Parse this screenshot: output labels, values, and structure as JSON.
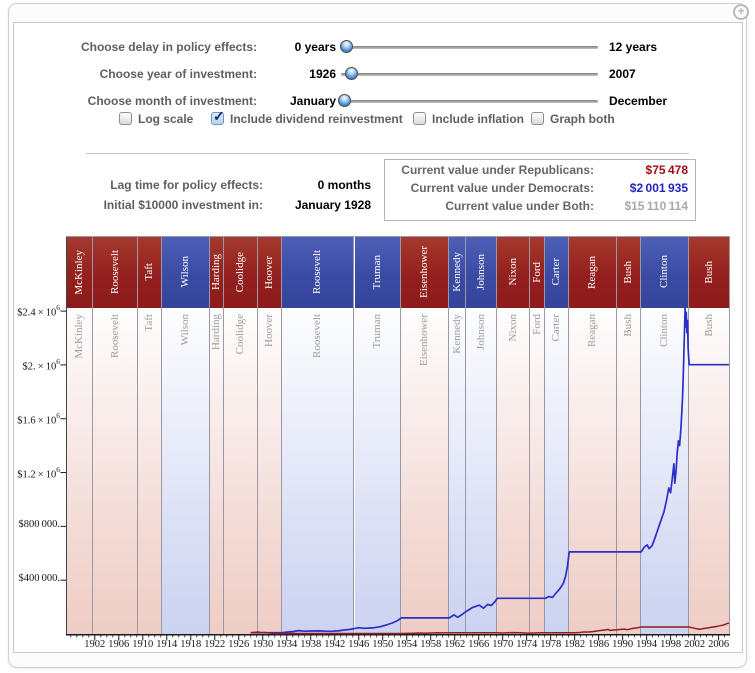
{
  "icons": {
    "plus": "+",
    "check": "✓"
  },
  "controls": {
    "sliders": [
      {
        "label": "Choose delay in policy effects:",
        "min": "0 years",
        "max": "12 years",
        "thumb_pct": 2
      },
      {
        "label": "Choose year of investment:",
        "min": "1926",
        "max": "2007",
        "thumb_pct": 4
      },
      {
        "label": "Choose month of investment:",
        "min": "January",
        "max": "December",
        "thumb_pct": 1
      }
    ],
    "checkboxes": [
      {
        "label": "Log scale",
        "checked": false
      },
      {
        "label": "Include dividend reinvestment",
        "checked": true
      },
      {
        "label": "Include inflation",
        "checked": false
      },
      {
        "label": "Graph both",
        "checked": false
      }
    ]
  },
  "info": {
    "rows": [
      {
        "label": "Lag time for policy effects:",
        "value": "0 months"
      },
      {
        "label": "Initial $10000 investment in:",
        "value": "January 1928"
      }
    ],
    "current_values": [
      {
        "label": "Current value under Republicans:",
        "value": "$75 478",
        "color": "#a30d12"
      },
      {
        "label": "Current value under Democrats:",
        "value": "$2 001 935",
        "color": "#2323c8"
      },
      {
        "label": "Current value under Both:",
        "value": "$15 110 114",
        "color": "#a9a9a9"
      }
    ]
  },
  "chart_data": {
    "type": "line",
    "x_domain": [
      1897.2,
      2007.9
    ],
    "y_domain": [
      0,
      2423000
    ],
    "party_colors": {
      "R": "#8c1b1a",
      "D": "#35439a"
    },
    "presidents": [
      {
        "name": "McKinley",
        "party": "R",
        "start": 1897.2
      },
      {
        "name": "Roosevelt",
        "party": "R",
        "start": 1901.7
      },
      {
        "name": "Taft",
        "party": "R",
        "start": 1909.2
      },
      {
        "name": "Wilson",
        "party": "D",
        "start": 1913.2
      },
      {
        "name": "Harding",
        "party": "R",
        "start": 1921.2
      },
      {
        "name": "Coolidge",
        "party": "R",
        "start": 1923.6
      },
      {
        "name": "Hoover",
        "party": "R",
        "start": 1929.2
      },
      {
        "name": "Roosevelt",
        "party": "D",
        "start": 1933.2
      },
      {
        "name": "Truman",
        "party": "D",
        "start": 1945.3
      },
      {
        "name": "Eisenhower",
        "party": "R",
        "start": 1953.1
      },
      {
        "name": "Kennedy",
        "party": "D",
        "start": 1961.1
      },
      {
        "name": "Johnson",
        "party": "D",
        "start": 1963.9
      },
      {
        "name": "Nixon",
        "party": "R",
        "start": 1969.1
      },
      {
        "name": "Ford",
        "party": "R",
        "start": 1974.6
      },
      {
        "name": "Carter",
        "party": "D",
        "start": 1977.1
      },
      {
        "name": "Reagan",
        "party": "R",
        "start": 1981.1
      },
      {
        "name": "Bush",
        "party": "R",
        "start": 1989.1
      },
      {
        "name": "Clinton",
        "party": "D",
        "start": 1993.1
      },
      {
        "name": "Bush",
        "party": "R",
        "start": 2001.1
      }
    ],
    "x_ticks": [
      1902,
      1906,
      1910,
      1914,
      1918,
      1922,
      1926,
      1930,
      1934,
      1938,
      1942,
      1946,
      1950,
      1954,
      1958,
      1962,
      1966,
      1970,
      1974,
      1978,
      1982,
      1986,
      1990,
      1994,
      1998,
      2002,
      2006
    ],
    "y_ticks": [
      {
        "value": 2400000,
        "base": "$2.4 × 10",
        "exp": "6"
      },
      {
        "value": 2000000,
        "base": "$2. × 10",
        "exp": "6"
      },
      {
        "value": 1600000,
        "base": "$1.6 × 10",
        "exp": "6"
      },
      {
        "value": 1200000,
        "base": "$1.2 × 10",
        "exp": "6"
      },
      {
        "value": 800000,
        "base": "$800 000.",
        "exp": ""
      },
      {
        "value": 400000,
        "base": "$400 000.",
        "exp": ""
      }
    ],
    "series": [
      {
        "name": "Democrats only",
        "color": "#2b2fc8",
        "width": 1.7,
        "points": [
          [
            1928.0,
            10000
          ],
          [
            1933.2,
            10000
          ],
          [
            1934.0,
            14000
          ],
          [
            1935.0,
            18000
          ],
          [
            1936.0,
            25000
          ],
          [
            1937.0,
            21000
          ],
          [
            1938.0,
            22000
          ],
          [
            1939.5,
            23000
          ],
          [
            1940.5,
            21000
          ],
          [
            1941.5,
            20000
          ],
          [
            1942.5,
            23000
          ],
          [
            1943.5,
            29000
          ],
          [
            1944.5,
            34000
          ],
          [
            1945.3,
            40000
          ],
          [
            1946.0,
            47000
          ],
          [
            1946.8,
            42000
          ],
          [
            1947.6,
            44000
          ],
          [
            1948.6,
            47000
          ],
          [
            1949.6,
            54000
          ],
          [
            1950.6,
            67000
          ],
          [
            1951.6,
            82000
          ],
          [
            1952.5,
            100000
          ],
          [
            1953.1,
            120000
          ],
          [
            1961.1,
            120000
          ],
          [
            1961.9,
            142000
          ],
          [
            1962.5,
            124000
          ],
          [
            1963.2,
            144000
          ],
          [
            1964.0,
            170000
          ],
          [
            1965.0,
            198000
          ],
          [
            1966.1,
            214000
          ],
          [
            1966.8,
            192000
          ],
          [
            1967.5,
            220000
          ],
          [
            1968.1,
            212000
          ],
          [
            1968.7,
            240000
          ],
          [
            1969.1,
            265000
          ],
          [
            1977.1,
            265000
          ],
          [
            1977.7,
            278000
          ],
          [
            1978.3,
            272000
          ],
          [
            1978.9,
            305000
          ],
          [
            1979.5,
            335000
          ],
          [
            1980.1,
            375000
          ],
          [
            1980.5,
            430000
          ],
          [
            1980.8,
            500000
          ],
          [
            1981.1,
            610000
          ],
          [
            1993.1,
            610000
          ],
          [
            1993.6,
            645000
          ],
          [
            1994.1,
            662000
          ],
          [
            1994.4,
            635000
          ],
          [
            1994.9,
            655000
          ],
          [
            1995.4,
            715000
          ],
          [
            1995.9,
            780000
          ],
          [
            1996.4,
            845000
          ],
          [
            1996.9,
            910000
          ],
          [
            1997.3,
            990000
          ],
          [
            1997.7,
            1085000
          ],
          [
            1998.0,
            1050000
          ],
          [
            1998.3,
            1165000
          ],
          [
            1998.55,
            1265000
          ],
          [
            1998.7,
            1120000
          ],
          [
            1998.9,
            1205000
          ],
          [
            1999.1,
            1345000
          ],
          [
            1999.3,
            1435000
          ],
          [
            1999.5,
            1400000
          ],
          [
            1999.7,
            1515000
          ],
          [
            1999.85,
            1635000
          ],
          [
            2000.0,
            1765000
          ],
          [
            2000.1,
            1905000
          ],
          [
            2000.2,
            2065000
          ],
          [
            2000.3,
            2225000
          ],
          [
            2000.42,
            2420000
          ],
          [
            2000.52,
            2280000
          ],
          [
            2000.62,
            2390000
          ],
          [
            2000.72,
            2240000
          ],
          [
            2000.82,
            2330000
          ],
          [
            2000.92,
            2130000
          ],
          [
            2001.0,
            2060000
          ],
          [
            2001.1,
            2001935
          ],
          [
            2007.9,
            2001935
          ]
        ]
      },
      {
        "name": "Republicans only",
        "color": "#8e1f1f",
        "width": 1.5,
        "points": [
          [
            1928.0,
            10000
          ],
          [
            1928.6,
            12000
          ],
          [
            1929.2,
            14500
          ],
          [
            1929.8,
            10500
          ],
          [
            1930.3,
            11500
          ],
          [
            1931.0,
            7500
          ],
          [
            1932.0,
            4000
          ],
          [
            1932.6,
            3000
          ],
          [
            1933.2,
            3600
          ],
          [
            1953.1,
            3600
          ],
          [
            1954.0,
            4500
          ],
          [
            1955.0,
            6000
          ],
          [
            1956.0,
            7200
          ],
          [
            1957.0,
            6300
          ],
          [
            1958.0,
            7600
          ],
          [
            1959.0,
            8800
          ],
          [
            1960.0,
            8300
          ],
          [
            1961.1,
            8900
          ],
          [
            1969.1,
            8900
          ],
          [
            1970.0,
            7700
          ],
          [
            1971.0,
            9000
          ],
          [
            1972.0,
            10400
          ],
          [
            1973.0,
            9500
          ],
          [
            1974.0,
            7000
          ],
          [
            1974.8,
            6500
          ],
          [
            1975.6,
            8200
          ],
          [
            1976.6,
            9600
          ],
          [
            1977.1,
            9900
          ],
          [
            1981.1,
            9900
          ],
          [
            1982.0,
            9200
          ],
          [
            1982.8,
            11500
          ],
          [
            1983.5,
            14500
          ],
          [
            1984.3,
            15200
          ],
          [
            1985.0,
            18000
          ],
          [
            1986.0,
            23500
          ],
          [
            1987.0,
            30000
          ],
          [
            1987.6,
            34500
          ],
          [
            1987.85,
            26500
          ],
          [
            1988.5,
            29500
          ],
          [
            1989.1,
            31500
          ],
          [
            1989.7,
            34500
          ],
          [
            1990.3,
            36500
          ],
          [
            1990.8,
            32000
          ],
          [
            1991.4,
            39000
          ],
          [
            1992.1,
            44000
          ],
          [
            1992.7,
            48000
          ],
          [
            1993.1,
            52000
          ],
          [
            2001.1,
            52000
          ],
          [
            2001.5,
            47000
          ],
          [
            2002.0,
            42000
          ],
          [
            2002.5,
            38000
          ],
          [
            2002.9,
            35000
          ],
          [
            2003.3,
            38500
          ],
          [
            2004.0,
            44000
          ],
          [
            2004.8,
            50000
          ],
          [
            2005.5,
            55000
          ],
          [
            2006.2,
            61000
          ],
          [
            2006.9,
            68000
          ],
          [
            2007.3,
            76000
          ],
          [
            2007.6,
            80000
          ],
          [
            2007.9,
            75478
          ]
        ]
      }
    ]
  }
}
